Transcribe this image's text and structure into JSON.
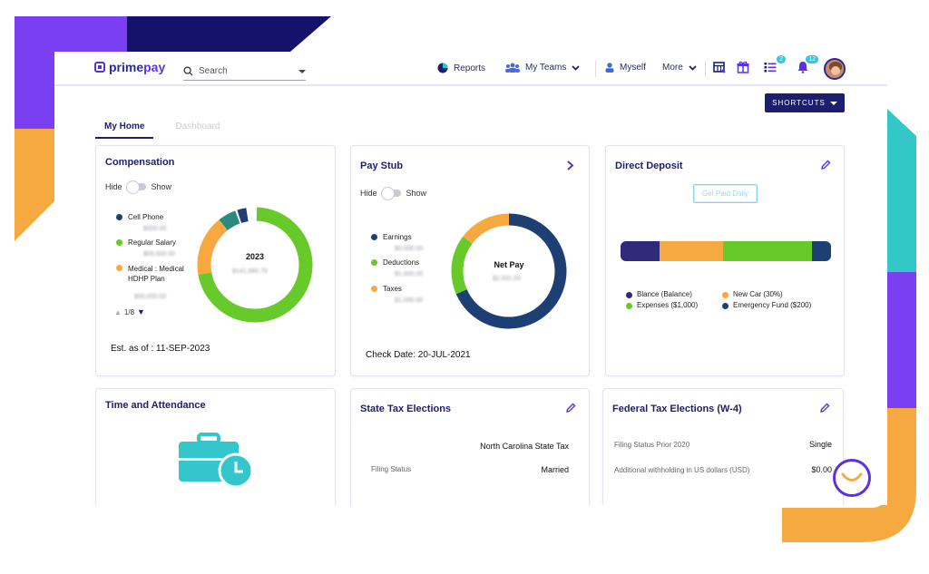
{
  "app": {
    "logo_prefix": "prime",
    "logo_suffix": "pay"
  },
  "search": {
    "placeholder": "Search"
  },
  "nav": {
    "reports": "Reports",
    "my_teams": "My Teams",
    "myself": "Myself",
    "more": "More"
  },
  "badges": {
    "list": "2",
    "notifications": "12"
  },
  "shortcuts_label": "SHORTCUTS",
  "tabs": [
    {
      "label": "My Home"
    },
    {
      "label": "Dashboard"
    }
  ],
  "compensation": {
    "title": "Compensation",
    "hide": "Hide",
    "show": "Show",
    "legend": [
      {
        "label": "Cell Phone",
        "amount": "$000.00",
        "color": "#1e3f74"
      },
      {
        "label": "Regular Salary",
        "amount": "$00,000.00",
        "color": "#67c92a"
      },
      {
        "label": "Medical : Medical HDHP Plan",
        "amount": "$00,000.00",
        "color": "#f6a941"
      }
    ],
    "pager": "1/8",
    "center_year": "2023",
    "center_amount": "$141,860.78",
    "est_label": "Est. as of : 11-SEP-2023"
  },
  "paystub": {
    "title": "Pay Stub",
    "hide": "Hide",
    "show": "Show",
    "legend": [
      {
        "label": "Earnings",
        "amount": "$0,000.00",
        "color": "#1e3f74"
      },
      {
        "label": "Deductions",
        "amount": "$1,000.00",
        "color": "#67c92a"
      },
      {
        "label": "Taxes",
        "amount": "$1,000.00",
        "color": "#f6a941"
      }
    ],
    "center_label": "Net Pay",
    "center_amount": "$2,031.00",
    "check_date": "Check Date: 20-JUL-2021"
  },
  "direct_deposit": {
    "title": "Direct Deposit",
    "button": "Get Paid Daily",
    "legend": [
      {
        "label": "Blance (Balance)",
        "color": "#2f2a7a"
      },
      {
        "label": "New Car (30%)",
        "color": "#f6a941"
      },
      {
        "label": "Expenses ($1,000)",
        "color": "#67c92a"
      },
      {
        "label": "Emergency Fund ($200)",
        "color": "#1e3f74"
      }
    ]
  },
  "time_attendance": {
    "title": "Time and Attendance"
  },
  "state_tax": {
    "title": "State Tax Elections",
    "state": "North Carolina State Tax",
    "filing_label": "Filing Status",
    "filing_value": "Married"
  },
  "federal_tax": {
    "title": "Federal Tax Elections (W-4)",
    "filing_prior_label": "Filing Status Prior 2020",
    "filing_prior_value": "Single",
    "withholding_label": "Additional withholding in US dollars (USD)",
    "withholding_value": "$0.00"
  },
  "colors": {
    "navy": "#1b1f6e",
    "purple": "#5a32e6",
    "green": "#67c92a",
    "orange": "#f6a941",
    "teal": "#2ec7cc"
  }
}
